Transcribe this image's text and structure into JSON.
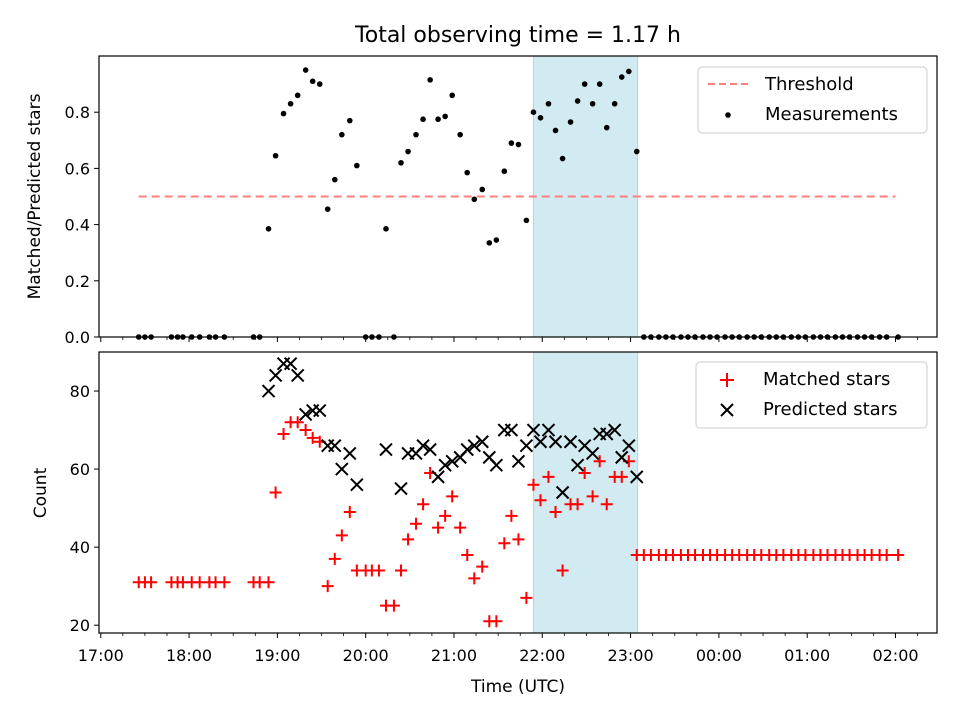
{
  "figure": {
    "title": "Total observing time = 1.17 h",
    "xlabel": "Time (UTC)",
    "x_ticks": [
      "17:00",
      "18:00",
      "19:00",
      "20:00",
      "21:00",
      "22:00",
      "23:00",
      "00:00",
      "01:00",
      "02:00"
    ],
    "x_tick_hours": [
      17,
      18,
      19,
      20,
      21,
      22,
      23,
      24,
      25,
      26
    ],
    "xlim": [
      16.98,
      26.47
    ],
    "shaded_interval": [
      21.9,
      23.08
    ],
    "shade_color": "#add8e6",
    "colors": {
      "threshold": "#ff7f7f",
      "measurements": "#000000",
      "matched": "#ff0000",
      "predicted": "#000000"
    }
  },
  "chart_data": [
    {
      "type": "scatter",
      "ylabel": "Matched/Predicted stars",
      "ylim": [
        0,
        1.0
      ],
      "y_ticks": [
        0.0,
        0.2,
        0.4,
        0.6,
        0.8
      ],
      "y_tick_labels": [
        "0.0",
        "0.2",
        "0.4",
        "0.6",
        "0.8"
      ],
      "legend": {
        "placement": "top-right",
        "entries": [
          "Threshold",
          "Measurements"
        ]
      },
      "threshold": {
        "name": "Threshold",
        "y": 0.5,
        "x_range": [
          17.43,
          26.0
        ],
        "style": "dashed"
      },
      "series": [
        {
          "name": "Measurements",
          "marker": "dot",
          "points": [
            [
              17.43,
              0
            ],
            [
              17.5,
              0
            ],
            [
              17.57,
              0
            ],
            [
              17.8,
              0
            ],
            [
              17.87,
              0
            ],
            [
              17.93,
              0
            ],
            [
              18.03,
              0
            ],
            [
              18.12,
              0
            ],
            [
              18.23,
              0
            ],
            [
              18.3,
              0
            ],
            [
              18.4,
              0
            ],
            [
              18.73,
              0
            ],
            [
              18.8,
              0
            ],
            [
              18.9,
              0.385
            ],
            [
              18.98,
              0.645
            ],
            [
              19.07,
              0.795
            ],
            [
              19.15,
              0.83
            ],
            [
              19.23,
              0.86
            ],
            [
              19.32,
              0.95
            ],
            [
              19.4,
              0.91
            ],
            [
              19.48,
              0.9
            ],
            [
              19.57,
              0.455
            ],
            [
              19.65,
              0.56
            ],
            [
              19.73,
              0.72
            ],
            [
              19.82,
              0.77
            ],
            [
              19.9,
              0.61
            ],
            [
              20.0,
              0
            ],
            [
              20.07,
              0
            ],
            [
              20.15,
              0
            ],
            [
              20.23,
              0.385
            ],
            [
              20.32,
              0
            ],
            [
              20.4,
              0.62
            ],
            [
              20.48,
              0.66
            ],
            [
              20.57,
              0.72
            ],
            [
              20.65,
              0.775
            ],
            [
              20.73,
              0.915
            ],
            [
              20.82,
              0.775
            ],
            [
              20.9,
              0.785
            ],
            [
              20.98,
              0.86
            ],
            [
              21.07,
              0.72
            ],
            [
              21.15,
              0.585
            ],
            [
              21.23,
              0.49
            ],
            [
              21.32,
              0.525
            ],
            [
              21.4,
              0.335
            ],
            [
              21.48,
              0.345
            ],
            [
              21.57,
              0.59
            ],
            [
              21.65,
              0.69
            ],
            [
              21.73,
              0.685
            ],
            [
              21.82,
              0.415
            ],
            [
              21.9,
              0.8
            ],
            [
              21.98,
              0.78
            ],
            [
              22.07,
              0.83
            ],
            [
              22.15,
              0.735
            ],
            [
              22.23,
              0.635
            ],
            [
              22.32,
              0.765
            ],
            [
              22.4,
              0.84
            ],
            [
              22.48,
              0.9
            ],
            [
              22.57,
              0.83
            ],
            [
              22.65,
              0.9
            ],
            [
              22.73,
              0.745
            ],
            [
              22.82,
              0.83
            ],
            [
              22.9,
              0.925
            ],
            [
              22.98,
              0.945
            ],
            [
              23.07,
              0.66
            ],
            [
              23.15,
              0
            ],
            [
              23.23,
              0
            ],
            [
              23.32,
              0
            ],
            [
              23.4,
              0
            ],
            [
              23.48,
              0
            ],
            [
              23.57,
              0
            ],
            [
              23.65,
              0
            ],
            [
              23.73,
              0
            ],
            [
              23.82,
              0
            ],
            [
              23.9,
              0
            ],
            [
              23.98,
              0
            ],
            [
              24.07,
              0
            ],
            [
              24.15,
              0
            ],
            [
              24.23,
              0
            ],
            [
              24.32,
              0
            ],
            [
              24.4,
              0
            ],
            [
              24.48,
              0
            ],
            [
              24.57,
              0
            ],
            [
              24.65,
              0
            ],
            [
              24.73,
              0
            ],
            [
              24.82,
              0
            ],
            [
              24.9,
              0
            ],
            [
              24.98,
              0
            ],
            [
              25.07,
              0
            ],
            [
              25.15,
              0
            ],
            [
              25.23,
              0
            ],
            [
              25.32,
              0
            ],
            [
              25.4,
              0
            ],
            [
              25.48,
              0
            ],
            [
              25.57,
              0
            ],
            [
              25.65,
              0
            ],
            [
              25.73,
              0
            ],
            [
              25.82,
              0
            ],
            [
              25.9,
              0
            ],
            [
              26.03,
              0
            ]
          ]
        }
      ]
    },
    {
      "type": "scatter",
      "ylabel": "Count",
      "ylim": [
        18,
        90
      ],
      "y_ticks": [
        20,
        40,
        60,
        80
      ],
      "y_tick_labels": [
        "20",
        "40",
        "60",
        "80"
      ],
      "legend": {
        "placement": "top-right",
        "entries": [
          "Matched stars",
          "Predicted stars"
        ]
      },
      "series": [
        {
          "name": "Matched stars",
          "marker": "plus",
          "points": [
            [
              17.43,
              31
            ],
            [
              17.5,
              31
            ],
            [
              17.57,
              31
            ],
            [
              17.8,
              31
            ],
            [
              17.87,
              31
            ],
            [
              17.93,
              31
            ],
            [
              18.03,
              31
            ],
            [
              18.12,
              31
            ],
            [
              18.23,
              31
            ],
            [
              18.3,
              31
            ],
            [
              18.4,
              31
            ],
            [
              18.73,
              31
            ],
            [
              18.8,
              31
            ],
            [
              18.9,
              31
            ],
            [
              18.98,
              54
            ],
            [
              19.07,
              69
            ],
            [
              19.15,
              72
            ],
            [
              19.23,
              72
            ],
            [
              19.32,
              70
            ],
            [
              19.4,
              68
            ],
            [
              19.48,
              67
            ],
            [
              19.57,
              30
            ],
            [
              19.65,
              37
            ],
            [
              19.73,
              43
            ],
            [
              19.82,
              49
            ],
            [
              19.9,
              34
            ],
            [
              20.0,
              34
            ],
            [
              20.07,
              34
            ],
            [
              20.15,
              34
            ],
            [
              20.23,
              25
            ],
            [
              20.32,
              25
            ],
            [
              20.4,
              34
            ],
            [
              20.48,
              42
            ],
            [
              20.57,
              46
            ],
            [
              20.65,
              51
            ],
            [
              20.73,
              59
            ],
            [
              20.82,
              45
            ],
            [
              20.9,
              48
            ],
            [
              20.98,
              53
            ],
            [
              21.07,
              45
            ],
            [
              21.15,
              38
            ],
            [
              21.23,
              32
            ],
            [
              21.32,
              35
            ],
            [
              21.4,
              21
            ],
            [
              21.48,
              21
            ],
            [
              21.57,
              41
            ],
            [
              21.65,
              48
            ],
            [
              21.73,
              42
            ],
            [
              21.82,
              27
            ],
            [
              21.9,
              56
            ],
            [
              21.98,
              52
            ],
            [
              22.07,
              58
            ],
            [
              22.15,
              49
            ],
            [
              22.23,
              34
            ],
            [
              22.32,
              51
            ],
            [
              22.4,
              51
            ],
            [
              22.48,
              59
            ],
            [
              22.57,
              53
            ],
            [
              22.65,
              62
            ],
            [
              22.73,
              51
            ],
            [
              22.82,
              58
            ],
            [
              22.9,
              58
            ],
            [
              22.98,
              62
            ],
            [
              23.07,
              38
            ],
            [
              23.15,
              38
            ],
            [
              23.23,
              38
            ],
            [
              23.32,
              38
            ],
            [
              23.4,
              38
            ],
            [
              23.48,
              38
            ],
            [
              23.57,
              38
            ],
            [
              23.65,
              38
            ],
            [
              23.73,
              38
            ],
            [
              23.82,
              38
            ],
            [
              23.9,
              38
            ],
            [
              23.98,
              38
            ],
            [
              24.07,
              38
            ],
            [
              24.15,
              38
            ],
            [
              24.23,
              38
            ],
            [
              24.32,
              38
            ],
            [
              24.4,
              38
            ],
            [
              24.48,
              38
            ],
            [
              24.57,
              38
            ],
            [
              24.65,
              38
            ],
            [
              24.73,
              38
            ],
            [
              24.82,
              38
            ],
            [
              24.9,
              38
            ],
            [
              24.98,
              38
            ],
            [
              25.07,
              38
            ],
            [
              25.15,
              38
            ],
            [
              25.23,
              38
            ],
            [
              25.32,
              38
            ],
            [
              25.4,
              38
            ],
            [
              25.48,
              38
            ],
            [
              25.57,
              38
            ],
            [
              25.65,
              38
            ],
            [
              25.73,
              38
            ],
            [
              25.82,
              38
            ],
            [
              25.9,
              38
            ],
            [
              26.03,
              38
            ]
          ]
        },
        {
          "name": "Predicted stars",
          "marker": "x",
          "points": [
            [
              18.9,
              80
            ],
            [
              18.98,
              84
            ],
            [
              19.07,
              87
            ],
            [
              19.15,
              87
            ],
            [
              19.23,
              84
            ],
            [
              19.32,
              74
            ],
            [
              19.4,
              75
            ],
            [
              19.48,
              75
            ],
            [
              19.57,
              66
            ],
            [
              19.65,
              66
            ],
            [
              19.73,
              60
            ],
            [
              19.82,
              64
            ],
            [
              19.9,
              56
            ],
            [
              20.23,
              65
            ],
            [
              20.4,
              55
            ],
            [
              20.48,
              64
            ],
            [
              20.57,
              64
            ],
            [
              20.65,
              66
            ],
            [
              20.73,
              65
            ],
            [
              20.82,
              58
            ],
            [
              20.9,
              61
            ],
            [
              20.98,
              62
            ],
            [
              21.07,
              63
            ],
            [
              21.15,
              65
            ],
            [
              21.23,
              66
            ],
            [
              21.32,
              67
            ],
            [
              21.4,
              63
            ],
            [
              21.48,
              61
            ],
            [
              21.57,
              70
            ],
            [
              21.65,
              70
            ],
            [
              21.73,
              62
            ],
            [
              21.82,
              66
            ],
            [
              21.9,
              70
            ],
            [
              21.98,
              67
            ],
            [
              22.07,
              70
            ],
            [
              22.15,
              67
            ],
            [
              22.23,
              54
            ],
            [
              22.32,
              67
            ],
            [
              22.4,
              61
            ],
            [
              22.48,
              66
            ],
            [
              22.57,
              64
            ],
            [
              22.65,
              69
            ],
            [
              22.73,
              69
            ],
            [
              22.82,
              70
            ],
            [
              22.9,
              63
            ],
            [
              22.98,
              66
            ],
            [
              23.07,
              58
            ]
          ]
        }
      ]
    }
  ]
}
